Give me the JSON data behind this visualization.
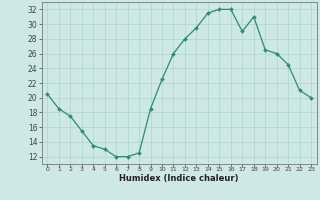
{
  "x": [
    0,
    1,
    2,
    3,
    4,
    5,
    6,
    7,
    8,
    9,
    10,
    11,
    12,
    13,
    14,
    15,
    16,
    17,
    18,
    19,
    20,
    21,
    22,
    23
  ],
  "y": [
    20.5,
    18.5,
    17.5,
    15.5,
    13.5,
    13.0,
    12.0,
    12.0,
    12.5,
    18.5,
    22.5,
    26.0,
    28.0,
    29.5,
    31.5,
    32.0,
    32.0,
    29.0,
    31.0,
    26.5,
    26.0,
    24.5,
    21.0,
    20.0
  ],
  "line_color": "#2d8b7a",
  "marker_color": "#2d8b7a",
  "bg_color": "#cde8e5",
  "grid_color": "#aed4d0",
  "xlabel": "Humidex (Indice chaleur)",
  "ylabel_ticks": [
    12,
    14,
    16,
    18,
    20,
    22,
    24,
    26,
    28,
    30,
    32
  ],
  "ylim": [
    11,
    33
  ],
  "xlim": [
    -0.5,
    23.5
  ],
  "tick_color": "#444444"
}
